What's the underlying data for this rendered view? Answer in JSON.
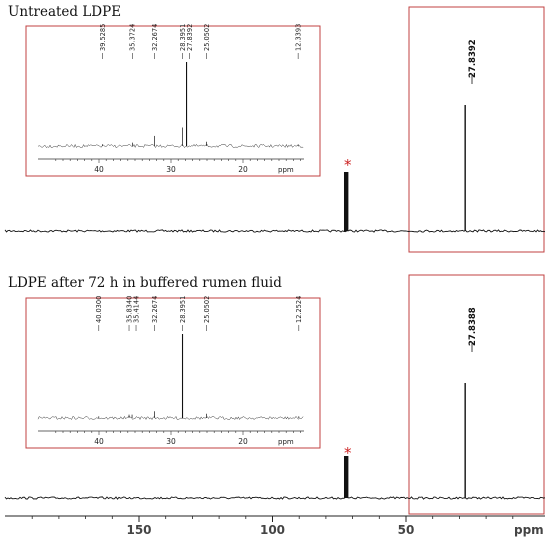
{
  "chart_data": {
    "type": "line",
    "panels": [
      {
        "title": "Untreated LDPE",
        "main_peak": {
          "label": "27.8392",
          "ppm": 27.84,
          "height": 1.0
        },
        "starred_peak": {
          "ppm": 72.4,
          "height": 0.83,
          "marker": "*"
        },
        "inset": {
          "x_ticks": [
            "40",
            "30",
            "20"
          ],
          "xlim": [
            46,
            10
          ],
          "unit": "ppm",
          "peaks": [
            {
              "label": "39.5285",
              "ppm": 39.53,
              "height": 0.02
            },
            {
              "label": "35.3724",
              "ppm": 35.37,
              "height": 0.04
            },
            {
              "label": "32.2674",
              "ppm": 32.27,
              "height": 0.12
            },
            {
              "label": "28.3951",
              "ppm": 28.4,
              "height": 0.22
            },
            {
              "label": "27.8392",
              "ppm": 27.84,
              "height": 1.0
            },
            {
              "label": "25.0502",
              "ppm": 25.05,
              "height": 0.05
            },
            {
              "label": "12.3393",
              "ppm": 12.34,
              "height": 0.02
            }
          ]
        }
      },
      {
        "title": "LDPE after 72 h in buffered rumen fluid",
        "main_peak": {
          "label": "27.8388",
          "ppm": 27.84,
          "height": 1.0
        },
        "starred_peak": {
          "ppm": 72.4,
          "height": 0.5,
          "marker": "*"
        },
        "inset": {
          "x_ticks": [
            "40",
            "30",
            "20"
          ],
          "xlim": [
            46,
            10
          ],
          "unit": "ppm",
          "peaks": [
            {
              "label": "40.0300",
              "ppm": 40.03,
              "height": 0.02
            },
            {
              "label": "35.8340",
              "ppm": 35.83,
              "height": 0.04
            },
            {
              "label": "35.4144",
              "ppm": 35.41,
              "height": 0.04
            },
            {
              "label": "32.2674",
              "ppm": 32.27,
              "height": 0.08
            },
            {
              "label": "28.3951",
              "ppm": 28.4,
              "height": 1.0
            },
            {
              "label": "25.0502",
              "ppm": 25.05,
              "height": 0.05
            },
            {
              "label": "12.2524",
              "ppm": 12.25,
              "height": 0.02
            }
          ]
        }
      }
    ],
    "x_axis": {
      "ticks": [
        "150",
        "100",
        "50"
      ],
      "unit": "ppm",
      "reversed": true
    },
    "highlight_region_color": "#c04040",
    "star_color": "#cc2222"
  }
}
